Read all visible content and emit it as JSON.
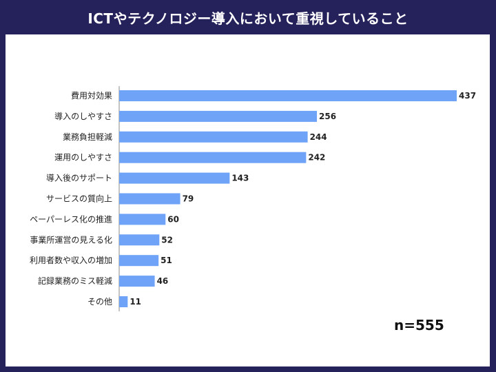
{
  "title": "ICTやテクノロジー導入において重視していること",
  "sample_note": "n=555",
  "colors": {
    "bar": "#6ea3f7",
    "background": "#25215a",
    "panel": "#ffffff"
  },
  "chart_data": {
    "type": "bar",
    "orientation": "horizontal",
    "title": "ICTやテクノロジー導入において重視していること",
    "categories": [
      "費用対効果",
      "導入のしやすさ",
      "業務負担軽減",
      "運用のしやすさ",
      "導入後のサポート",
      "サービスの質向上",
      "ペーパーレス化の推進",
      "事業所運営の見える化",
      "利用者数や収入の増加",
      "記録業務のミス軽減",
      "その他"
    ],
    "values": [
      437,
      256,
      244,
      242,
      143,
      79,
      60,
      52,
      51,
      46,
      11
    ],
    "xlim": [
      0,
      437
    ],
    "grid": false,
    "legend": "none"
  }
}
